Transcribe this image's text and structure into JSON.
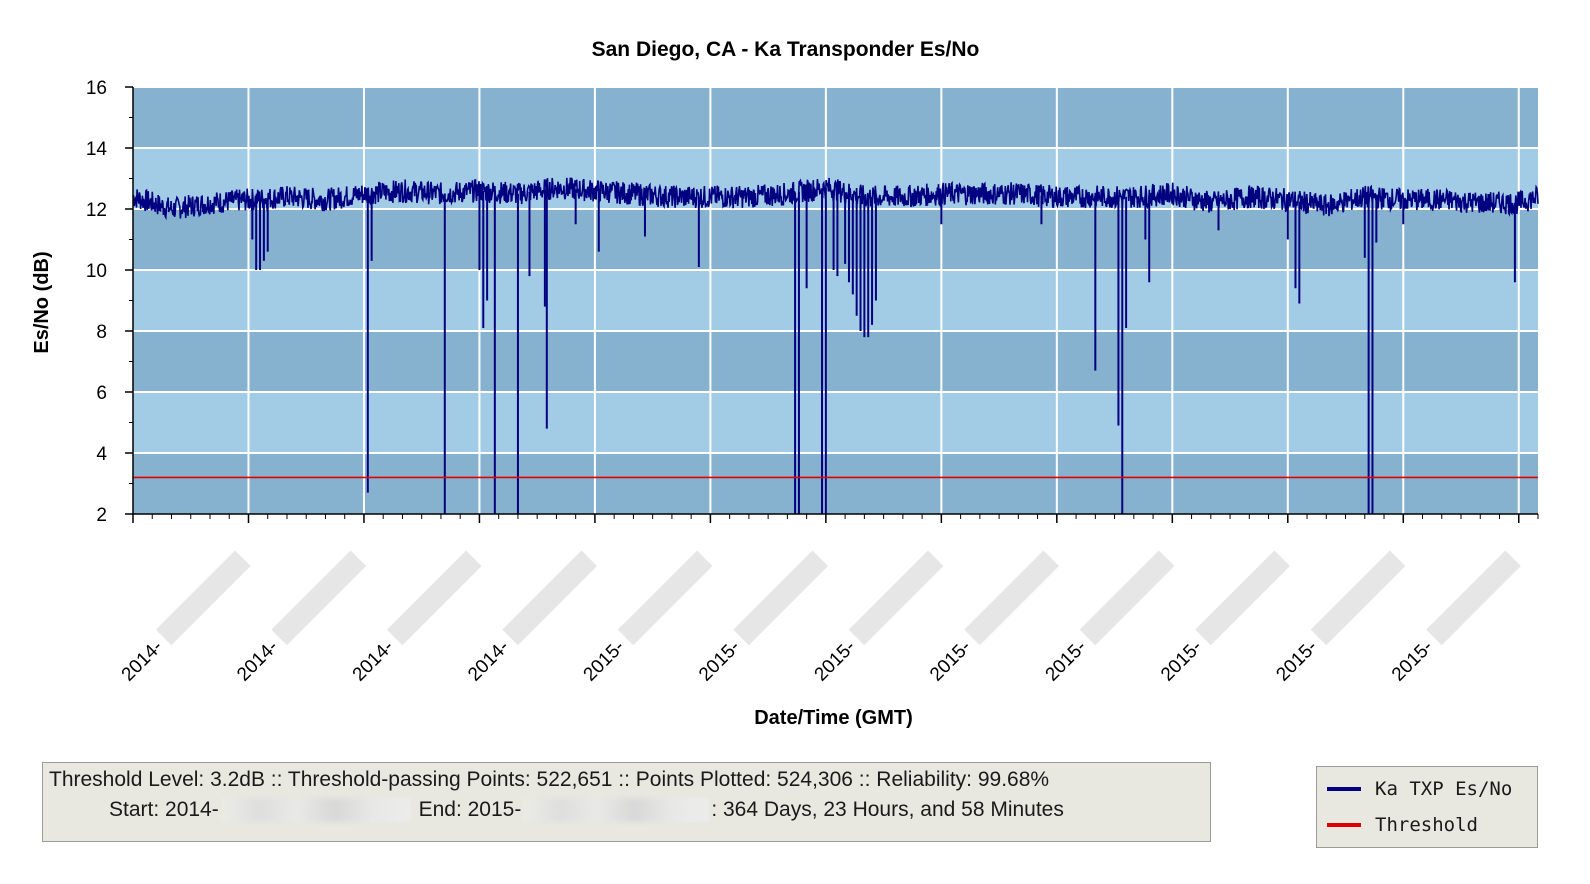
{
  "chart_data": {
    "type": "line",
    "title": "San Diego, CA - Ka Transponder Es/No",
    "xlabel": "Date/Time (GMT)",
    "ylabel": "Es/No (dB)",
    "ylim": [
      2,
      16
    ],
    "yticks": [
      2,
      4,
      6,
      8,
      10,
      12,
      14,
      16
    ],
    "xlim": [
      0,
      365
    ],
    "xticks": [
      {
        "value": 0,
        "label": "2014-"
      },
      {
        "value": 30,
        "label": "2014-"
      },
      {
        "value": 60,
        "label": "2014-"
      },
      {
        "value": 90,
        "label": "2014-"
      },
      {
        "value": 120,
        "label": "2015-"
      },
      {
        "value": 150,
        "label": "2015-"
      },
      {
        "value": 180,
        "label": "2015-"
      },
      {
        "value": 210,
        "label": "2015-"
      },
      {
        "value": 240,
        "label": "2015-"
      },
      {
        "value": 270,
        "label": "2015-"
      },
      {
        "value": 300,
        "label": "2015-"
      },
      {
        "value": 330,
        "label": "2015-"
      },
      {
        "value": 360,
        "label": ""
      }
    ],
    "background_bands": true,
    "grid": true,
    "legend_position": "bottom-right",
    "series": [
      {
        "name": "Ka TXP Es/No",
        "color": "#000080",
        "baseline_x": [
          0,
          10,
          20,
          30,
          40,
          50,
          60,
          70,
          80,
          90,
          100,
          110,
          120,
          130,
          140,
          150,
          160,
          170,
          180,
          190,
          200,
          210,
          220,
          230,
          240,
          250,
          260,
          270,
          280,
          290,
          300,
          310,
          320,
          330,
          340,
          350,
          360,
          365
        ],
        "baseline_y": [
          12.4,
          12.0,
          12.2,
          12.3,
          12.4,
          12.3,
          12.5,
          12.6,
          12.5,
          12.6,
          12.5,
          12.7,
          12.6,
          12.5,
          12.4,
          12.4,
          12.4,
          12.5,
          12.7,
          12.4,
          12.4,
          12.5,
          12.5,
          12.5,
          12.4,
          12.4,
          12.4,
          12.5,
          12.2,
          12.4,
          12.3,
          12.1,
          12.4,
          12.3,
          12.3,
          12.2,
          12.2,
          12.4
        ],
        "dips": [
          [
            31,
            11.0
          ],
          [
            32,
            10.0
          ],
          [
            33,
            10.0
          ],
          [
            34,
            10.3
          ],
          [
            35,
            10.6
          ],
          [
            61,
            2.7
          ],
          [
            62,
            10.3
          ],
          [
            81,
            2.0
          ],
          [
            90,
            10.0
          ],
          [
            91,
            8.1
          ],
          [
            92,
            9.0
          ],
          [
            94,
            2.0
          ],
          [
            100,
            2.0
          ],
          [
            103,
            9.8
          ],
          [
            107,
            8.8
          ],
          [
            107.5,
            4.8
          ],
          [
            115,
            11.5
          ],
          [
            121,
            10.6
          ],
          [
            133,
            11.1
          ],
          [
            147,
            10.1
          ],
          [
            172,
            2.0
          ],
          [
            173,
            2.0
          ],
          [
            175,
            9.4
          ],
          [
            179,
            2.0
          ],
          [
            180,
            2.0
          ],
          [
            182,
            10.0
          ],
          [
            183,
            9.8
          ],
          [
            185,
            10.2
          ],
          [
            186,
            9.6
          ],
          [
            187,
            9.2
          ],
          [
            188,
            8.5
          ],
          [
            189,
            8.0
          ],
          [
            190,
            7.8
          ],
          [
            191,
            7.8
          ],
          [
            192,
            8.2
          ],
          [
            193,
            9.0
          ],
          [
            210,
            11.5
          ],
          [
            236,
            11.5
          ],
          [
            250,
            6.7
          ],
          [
            256,
            4.9
          ],
          [
            257,
            2.0
          ],
          [
            258,
            8.1
          ],
          [
            263,
            11.0
          ],
          [
            264,
            9.6
          ],
          [
            282,
            11.3
          ],
          [
            300,
            11.0
          ],
          [
            302,
            9.4
          ],
          [
            303,
            8.9
          ],
          [
            320,
            10.4
          ],
          [
            321,
            2.0
          ],
          [
            322,
            2.0
          ],
          [
            323,
            10.9
          ],
          [
            330,
            11.5
          ],
          [
            359,
            9.6
          ]
        ]
      },
      {
        "name": "Threshold",
        "color": "#e00000",
        "value": 3.2
      }
    ]
  },
  "info": {
    "line1": "Threshold Level: 3.2dB :: Threshold-passing Points: 522,651 :: Points Plotted: 524,306 :: Reliability: 99.68%",
    "start_label": "Start: 2014-",
    "end_label": "End: 2015-",
    "duration": ": 364 Days, 23 Hours, and 58 Minutes"
  },
  "legend": {
    "items": [
      {
        "label": "Ka TXP Es/No",
        "color": "#000080"
      },
      {
        "label": "Threshold",
        "color": "#e00000"
      }
    ]
  }
}
